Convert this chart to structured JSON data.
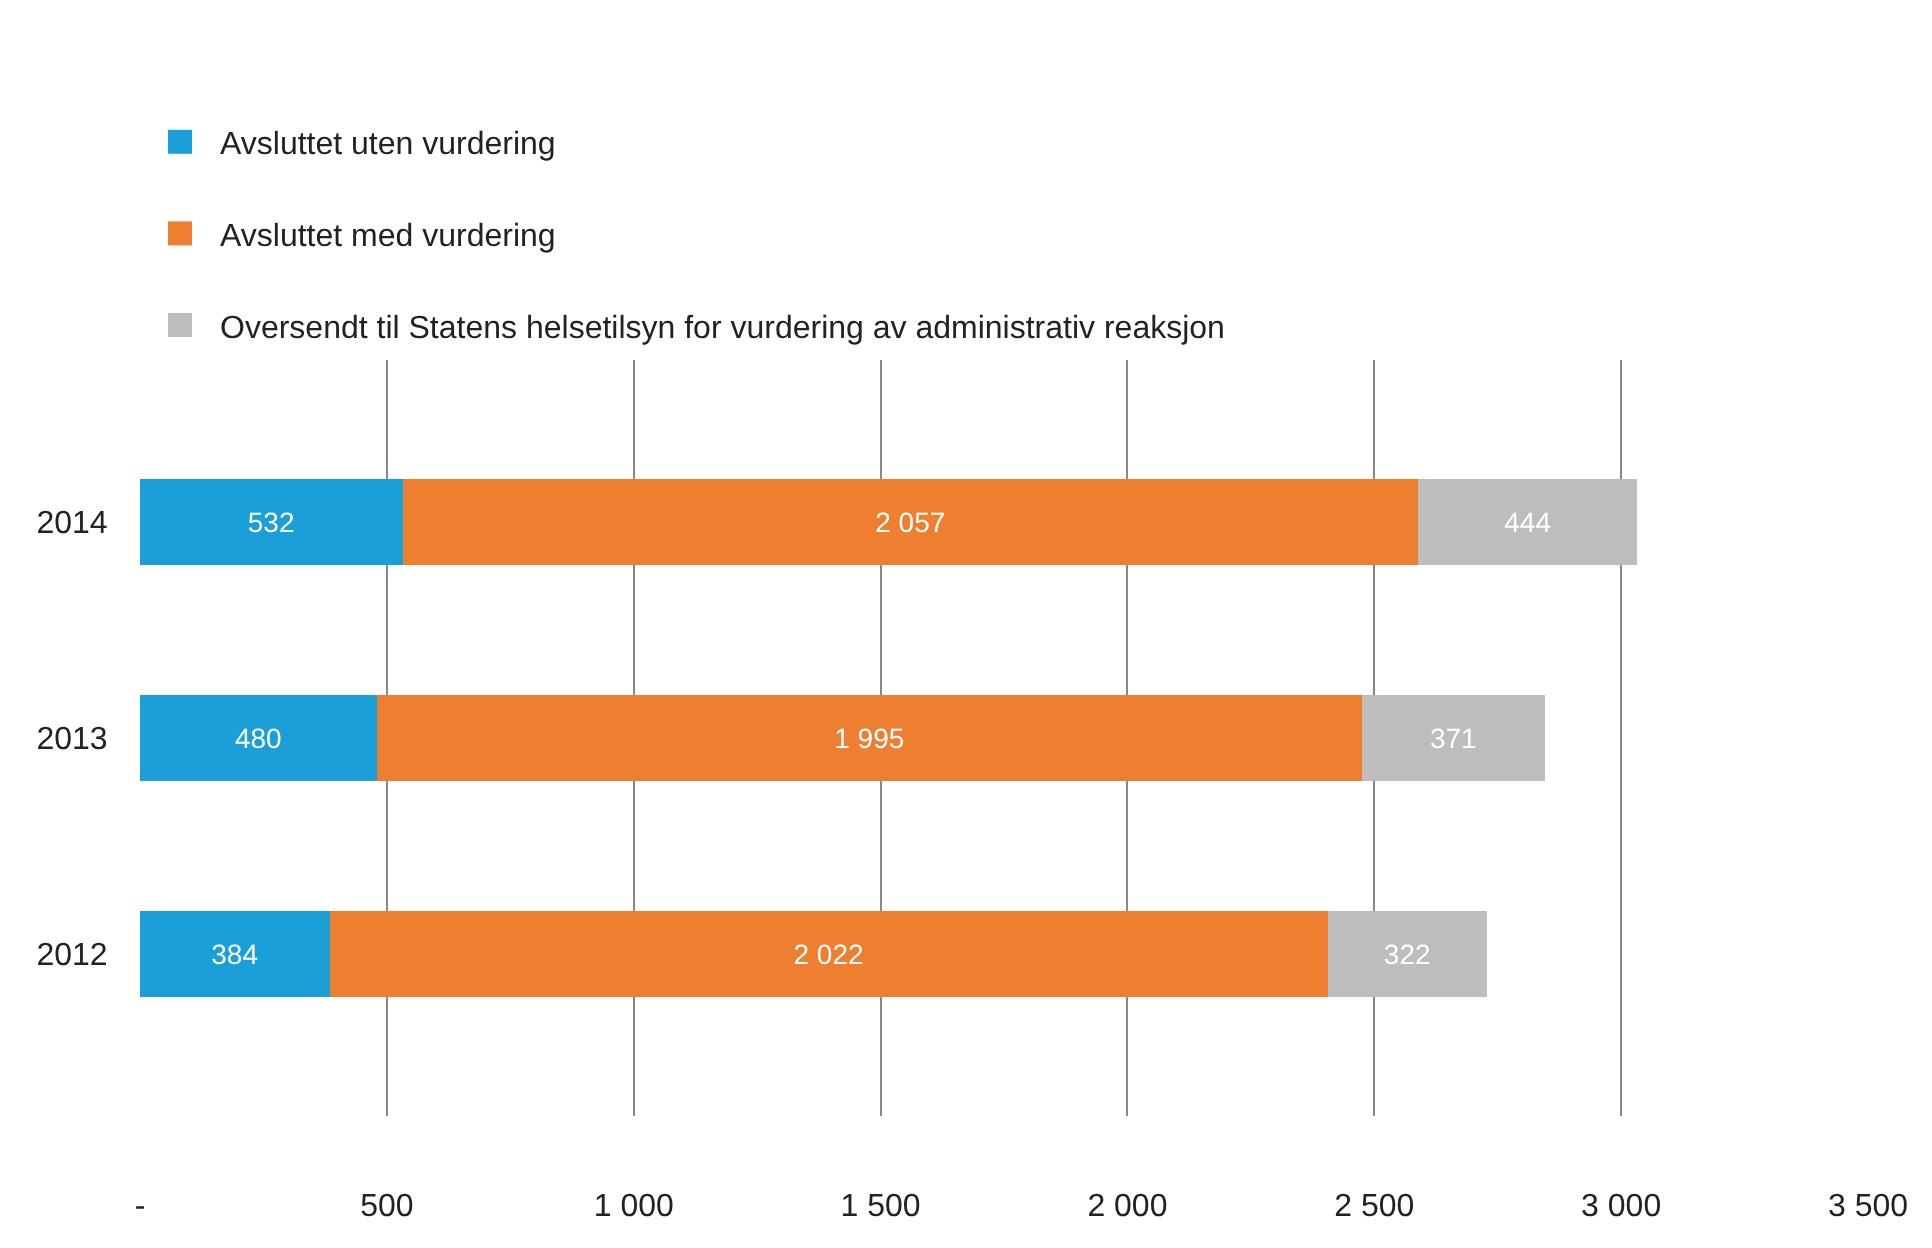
{
  "chart_data": {
    "type": "bar",
    "orientation": "horizontal",
    "stacked": true,
    "categories": [
      "2014",
      "2013",
      "2012"
    ],
    "series": [
      {
        "name": "Avsluttet uten vurdering",
        "color": "#1a9fd9",
        "values": [
          532,
          480,
          384
        ],
        "value_labels": [
          "532",
          "480",
          "384"
        ]
      },
      {
        "name": "Avsluttet med vurdering",
        "color": "#ee7f31",
        "values": [
          2057,
          1995,
          2022
        ],
        "value_labels": [
          "2 057",
          "1 995",
          "2 022"
        ]
      },
      {
        "name": "Oversendt til Statens helsetilsyn for vurdering av administrativ reaksjon",
        "color": "#bdbdbd",
        "values": [
          444,
          371,
          322
        ],
        "value_labels": [
          "444",
          "371",
          "322"
        ]
      }
    ],
    "xlim": [
      0,
      3500
    ],
    "xticks": [
      {
        "value": 0,
        "label": "-"
      },
      500,
      {
        "value": 1000,
        "label": "1 000"
      },
      {
        "value": 1500,
        "label": "1 500"
      },
      {
        "value": 2000,
        "label": "2 000"
      },
      {
        "value": 2500,
        "label": "2 500"
      },
      {
        "value": 3000,
        "label": "3 000"
      },
      {
        "value": 3500,
        "label": "3 500"
      }
    ],
    "grid": "x",
    "legend": "top left"
  }
}
